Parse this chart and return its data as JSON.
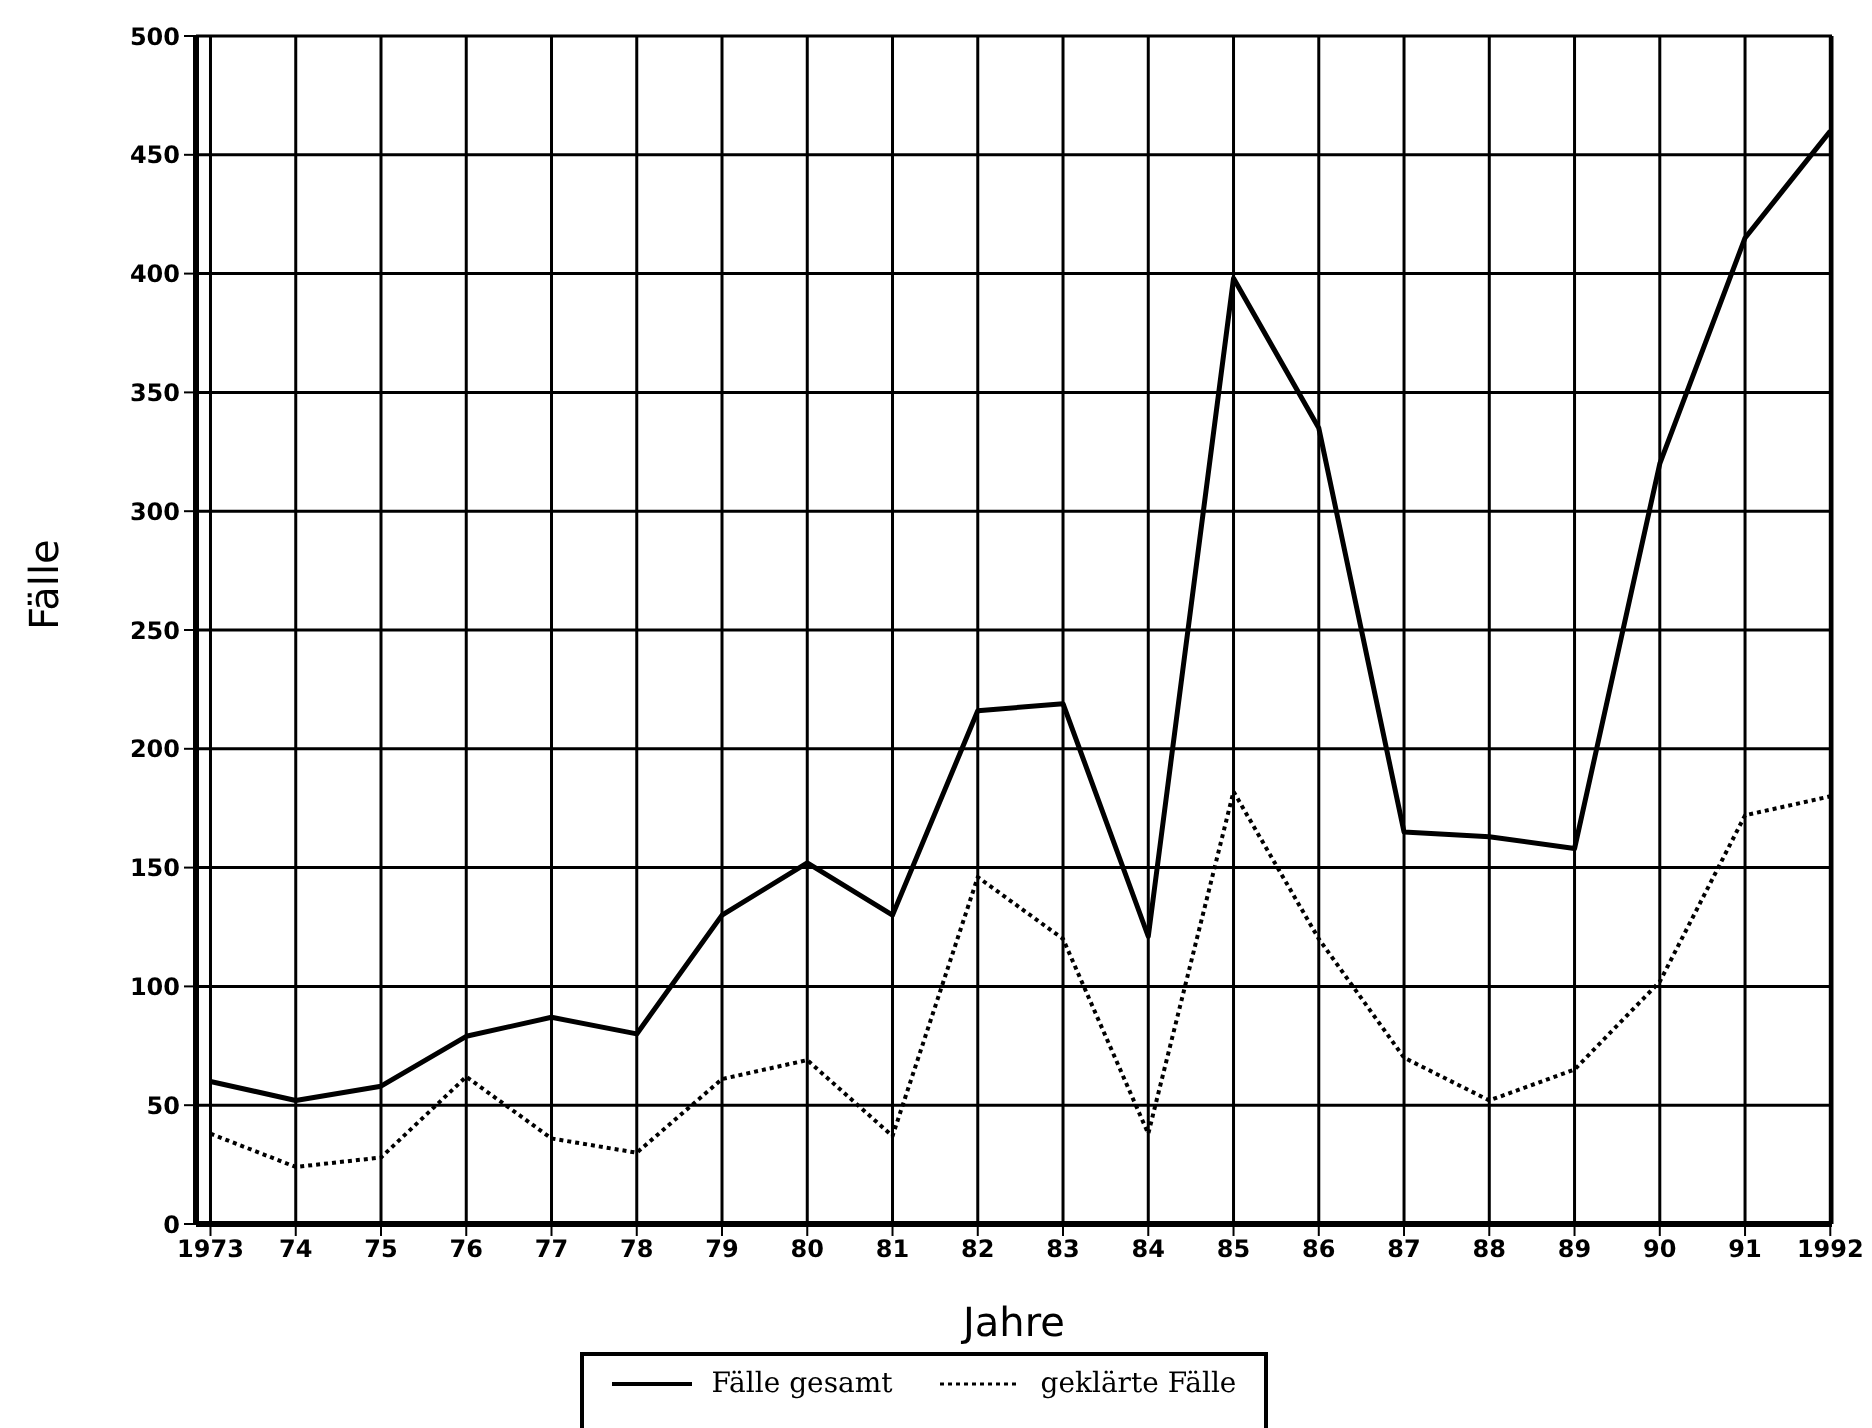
{
  "chart_data": {
    "type": "line",
    "xlabel": "Jahre",
    "ylabel": "Fälle",
    "categories": [
      "1973",
      "74",
      "75",
      "76",
      "77",
      "78",
      "79",
      "80",
      "81",
      "82",
      "83",
      "84",
      "85",
      "86",
      "87",
      "88",
      "89",
      "90",
      "91",
      "1992"
    ],
    "series": [
      {
        "name": "Fälle gesamt",
        "color": "#000000",
        "line_style": "solid",
        "values": [
          60,
          52,
          58,
          79,
          87,
          80,
          130,
          152,
          130,
          216,
          219,
          121,
          398,
          335,
          165,
          163,
          158,
          320,
          415,
          460
        ]
      },
      {
        "name": "geklärte Fälle",
        "color": "#000000",
        "line_style": "dotted",
        "values": [
          38,
          24,
          28,
          62,
          36,
          30,
          61,
          69,
          37,
          146,
          120,
          38,
          182,
          120,
          70,
          52,
          65,
          102,
          172,
          180
        ]
      }
    ],
    "ylim": [
      0,
      500
    ],
    "yticks": [
      0,
      50,
      100,
      150,
      200,
      250,
      300,
      350,
      400,
      450,
      500
    ],
    "grid": true,
    "legend": "bottom",
    "marker": "none"
  }
}
